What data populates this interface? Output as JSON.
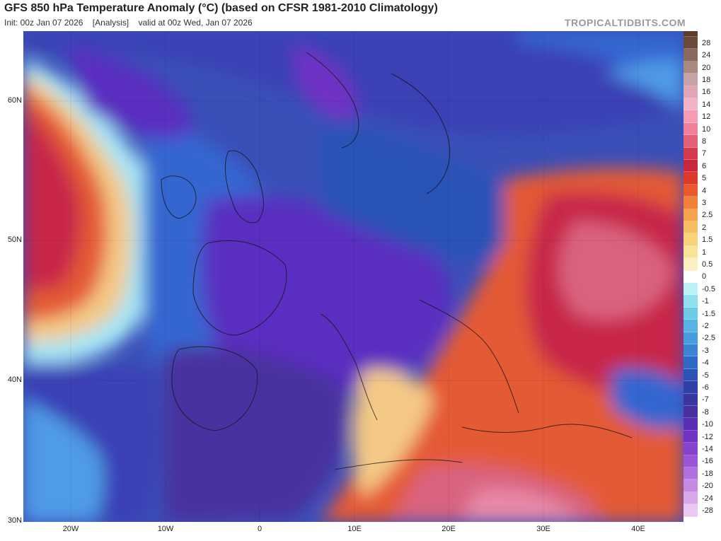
{
  "header": {
    "title": "GFS 850 hPa Temperature Anomaly (°C) (based on CFSR 1981-2010 Climatology)",
    "init": "Init: 00z Jan 07 2026",
    "analysis": "[Analysis]",
    "valid": "valid at 00z Wed, Jan 07 2026",
    "brand": "TROPICALTIDBITS.COM"
  },
  "map": {
    "lat_labels": [
      "60N",
      "50N",
      "40N",
      "30N"
    ],
    "lon_labels": [
      "20W",
      "10W",
      "0",
      "10E",
      "20E",
      "30E",
      "40E"
    ],
    "colors": {
      "deep_cold": "#5a2fc0",
      "cold": "#3b3fb5",
      "mid_cold": "#3566d0",
      "cool": "#4f9be8",
      "near_zero": "#a7e6f5",
      "warm_light": "#f4c985",
      "warm": "#e45a35",
      "hot": "#c8284a",
      "very_hot": "#d9637f",
      "extreme": "#e88aa8"
    }
  },
  "colorbar": {
    "labels": [
      "28",
      "24",
      "20",
      "18",
      "16",
      "14",
      "12",
      "10",
      "8",
      "7",
      "6",
      "5",
      "4",
      "3",
      "2.5",
      "2",
      "1.5",
      "1",
      "0.5",
      "0",
      "-0.5",
      "-1",
      "-1.5",
      "-2",
      "-2.5",
      "-3",
      "-4",
      "-5",
      "-6",
      "-7",
      "-8",
      "-10",
      "-12",
      "-14",
      "-16",
      "-18",
      "-20",
      "-24",
      "-28"
    ],
    "colors": [
      "#6b4a3a",
      "#8a6a5e",
      "#a88a82",
      "#c9a2a8",
      "#e0a5b6",
      "#f0b3c6",
      "#f59cb4",
      "#ef7f9b",
      "#e35f78",
      "#d4394f",
      "#c8283a",
      "#dc3b2c",
      "#ea5a2c",
      "#f0813a",
      "#f5a24c",
      "#f7bd63",
      "#f8d27b",
      "#f9e39a",
      "#fbf0c2",
      "#ffffff",
      "#bdf0f7",
      "#8fdff0",
      "#6ecbe8",
      "#57b4e2",
      "#469cdc",
      "#3a84d3",
      "#3069c6",
      "#2c53b7",
      "#2f40a8",
      "#3a36a0",
      "#4a309f",
      "#5a2fb4",
      "#7033c4",
      "#8742d0",
      "#9b55d6",
      "#b070dd",
      "#c68ae4",
      "#d8a9ea",
      "#e9c8f2"
    ]
  }
}
